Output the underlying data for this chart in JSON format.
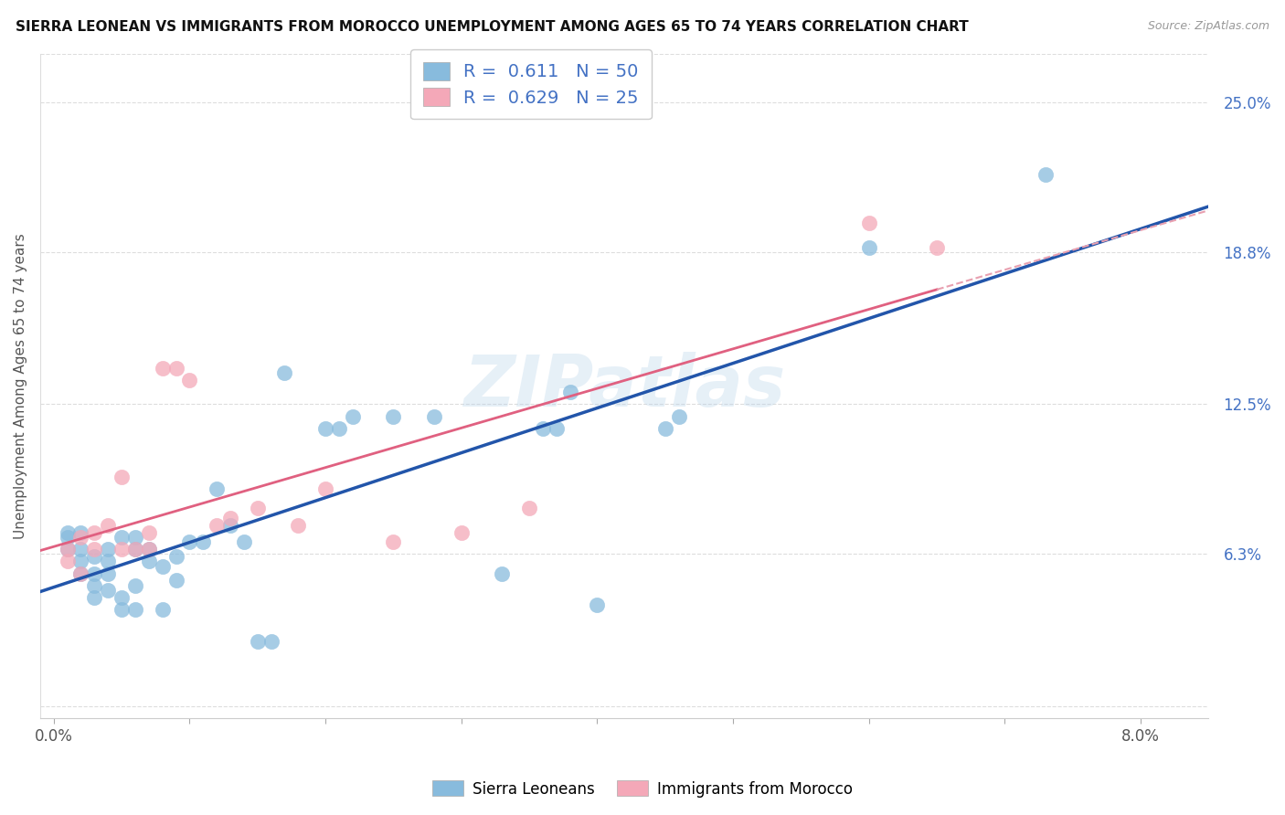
{
  "title": "SIERRA LEONEAN VS IMMIGRANTS FROM MOROCCO UNEMPLOYMENT AMONG AGES 65 TO 74 YEARS CORRELATION CHART",
  "source": "Source: ZipAtlas.com",
  "ylabel": "Unemployment Among Ages 65 to 74 years",
  "y_ticks_right": [
    0.0,
    0.063,
    0.125,
    0.188,
    0.25
  ],
  "y_tick_labels_right": [
    "",
    "6.3%",
    "12.5%",
    "18.8%",
    "25.0%"
  ],
  "ylim": [
    -0.005,
    0.27
  ],
  "xlim": [
    -0.001,
    0.085
  ],
  "blue_color": "#88bbdd",
  "pink_color": "#f4a8b8",
  "blue_line_color": "#2255aa",
  "pink_line_color": "#e06080",
  "pink_dash_color": "#e8a0b0",
  "R_blue": 0.611,
  "N_blue": 50,
  "R_pink": 0.629,
  "N_pink": 25,
  "legend_label_blue": "Sierra Leoneans",
  "legend_label_pink": "Immigrants from Morocco",
  "watermark": "ZIPatlas",
  "label_color": "#4472c4",
  "blue_scatter_x": [
    0.001,
    0.001,
    0.001,
    0.002,
    0.002,
    0.002,
    0.002,
    0.003,
    0.003,
    0.003,
    0.003,
    0.004,
    0.004,
    0.004,
    0.004,
    0.005,
    0.005,
    0.005,
    0.006,
    0.006,
    0.006,
    0.006,
    0.007,
    0.007,
    0.008,
    0.008,
    0.009,
    0.009,
    0.01,
    0.011,
    0.012,
    0.013,
    0.014,
    0.015,
    0.016,
    0.017,
    0.02,
    0.021,
    0.022,
    0.025,
    0.028,
    0.033,
    0.036,
    0.037,
    0.038,
    0.04,
    0.045,
    0.046,
    0.06,
    0.073
  ],
  "blue_scatter_y": [
    0.065,
    0.07,
    0.072,
    0.055,
    0.06,
    0.065,
    0.072,
    0.045,
    0.05,
    0.055,
    0.062,
    0.048,
    0.055,
    0.06,
    0.065,
    0.04,
    0.045,
    0.07,
    0.04,
    0.05,
    0.065,
    0.07,
    0.06,
    0.065,
    0.04,
    0.058,
    0.052,
    0.062,
    0.068,
    0.068,
    0.09,
    0.075,
    0.068,
    0.027,
    0.027,
    0.138,
    0.115,
    0.115,
    0.12,
    0.12,
    0.12,
    0.055,
    0.115,
    0.115,
    0.13,
    0.042,
    0.115,
    0.12,
    0.19,
    0.22
  ],
  "pink_scatter_x": [
    0.001,
    0.001,
    0.002,
    0.002,
    0.003,
    0.003,
    0.004,
    0.005,
    0.005,
    0.006,
    0.007,
    0.007,
    0.008,
    0.009,
    0.01,
    0.012,
    0.013,
    0.015,
    0.018,
    0.02,
    0.025,
    0.03,
    0.035,
    0.06,
    0.065
  ],
  "pink_scatter_y": [
    0.06,
    0.065,
    0.055,
    0.07,
    0.065,
    0.072,
    0.075,
    0.065,
    0.095,
    0.065,
    0.065,
    0.072,
    0.14,
    0.14,
    0.135,
    0.075,
    0.078,
    0.082,
    0.075,
    0.09,
    0.068,
    0.072,
    0.082,
    0.2,
    0.19
  ]
}
